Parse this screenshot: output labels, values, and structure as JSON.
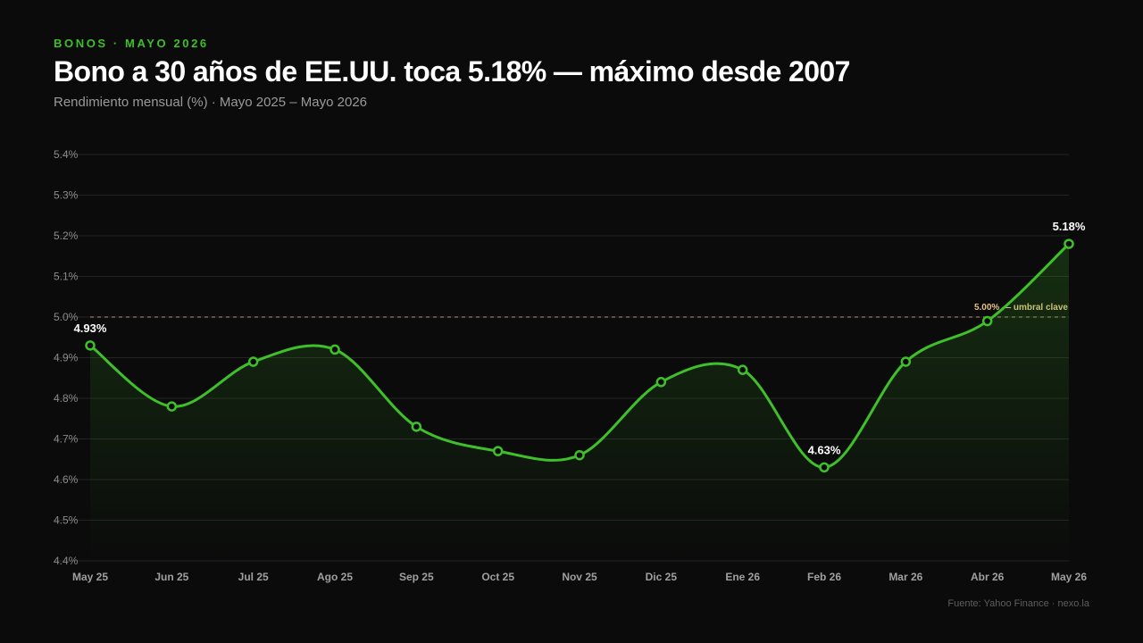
{
  "header": {
    "kicker": "BONOS · MAYO 2026",
    "title": "Bono a 30 años de EE.UU. toca 5.18% — máximo desde 2007",
    "subtitle": "Rendimiento mensual (%) · Mayo 2025 – Mayo 2026"
  },
  "footer": {
    "source": "Fuente: Yahoo Finance · nexo.la"
  },
  "colors": {
    "line": "#3fbf2a",
    "reference": "#e3c084",
    "grid": "#232323",
    "background": "#0b0b0b"
  },
  "chart_data": {
    "type": "line",
    "title": "Bono a 30 años de EE.UU. toca 5.18% — máximo desde 2007",
    "subtitle": "Rendimiento mensual (%) · Mayo 2025 – Mayo 2026",
    "categories": [
      "May 25",
      "Jun 25",
      "Jul 25",
      "Ago 25",
      "Sep 25",
      "Oct 25",
      "Nov 25",
      "Dic 25",
      "Ene 26",
      "Feb 26",
      "Mar 26",
      "Abr 26",
      "May 26"
    ],
    "values": [
      4.93,
      4.78,
      4.89,
      4.92,
      4.73,
      4.67,
      4.66,
      4.84,
      4.87,
      4.63,
      4.89,
      4.99,
      5.18
    ],
    "ylim": [
      4.4,
      5.4
    ],
    "yticks": [
      4.4,
      4.5,
      4.6,
      4.7,
      4.8,
      4.9,
      5.0,
      5.1,
      5.2,
      5.3,
      5.4
    ],
    "ytick_labels": [
      "4.4%",
      "4.5%",
      "4.6%",
      "4.7%",
      "4.8%",
      "4.9%",
      "5.0%",
      "5.1%",
      "5.2%",
      "5.3%",
      "5.4%"
    ],
    "grid": true,
    "legend": "none",
    "reference_line": {
      "value": 5.0,
      "label": "5.00% — umbral clave"
    },
    "annotations": [
      {
        "index": 0,
        "label": "4.93%"
      },
      {
        "index": 9,
        "label": "4.63%"
      },
      {
        "index": 12,
        "label": "5.18%"
      }
    ]
  }
}
